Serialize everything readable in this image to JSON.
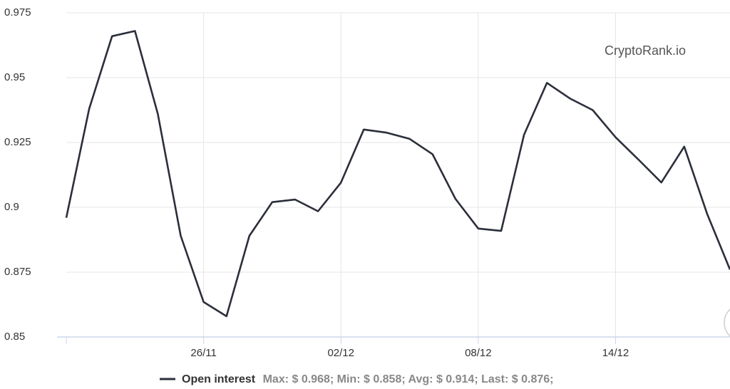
{
  "chart_data": {
    "type": "line",
    "watermark": "CryptoRank.io",
    "categories": [
      null,
      null,
      null,
      null,
      null,
      null,
      "26/11",
      null,
      null,
      null,
      null,
      null,
      "02/12",
      null,
      null,
      null,
      null,
      null,
      "08/12",
      null,
      null,
      null,
      null,
      null,
      "14/12",
      null,
      null,
      null,
      null,
      null
    ],
    "series": [
      {
        "name": "Open interest",
        "color": "#2b2f3a",
        "values": [
          0.896,
          0.938,
          0.966,
          0.968,
          0.936,
          0.889,
          0.8635,
          0.858,
          0.889,
          0.902,
          0.903,
          0.8985,
          0.9095,
          0.93,
          0.9288,
          0.9264,
          0.9205,
          0.9033,
          0.8918,
          0.8909,
          0.928,
          0.948,
          0.942,
          0.9375,
          0.927,
          0.9184,
          0.9096,
          0.9234,
          0.8975,
          0.876
        ]
      }
    ],
    "legend_note": "Max: $ 0.968; Min: $ 0.858; Avg: $ 0.914; Last: $ 0.876;",
    "ylim": [
      0.85,
      0.975
    ],
    "yticks": [
      0.85,
      0.875,
      0.9,
      0.925,
      0.95,
      0.975
    ],
    "grid": true
  }
}
